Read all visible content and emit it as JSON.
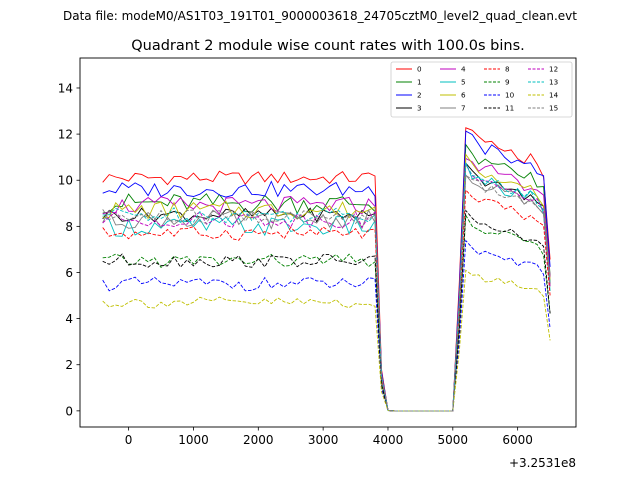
{
  "chart_data": {
    "type": "line",
    "suptitle": "Data file: modeM0/AS1T03_191T01_9000003618_24705cztM0_level2_quad_clean.evt",
    "title": "Quadrant 2 module wise count rates with 100.0s bins.",
    "xlabel": "",
    "ylabel": "",
    "x_offset_label": "+3.2531e8",
    "xlim": [
      -750,
      6900
    ],
    "ylim": [
      -0.7,
      15.3
    ],
    "xticks": [
      0,
      1000,
      2000,
      3000,
      4000,
      5000,
      6000
    ],
    "xtick_labels": [
      "0",
      "1000",
      "2000",
      "3000",
      "4000",
      "5000",
      "6000"
    ],
    "yticks": [
      0,
      2,
      4,
      6,
      8,
      10,
      12,
      14
    ],
    "ytick_labels": [
      "0",
      "2",
      "4",
      "6",
      "8",
      "10",
      "12",
      "14"
    ],
    "legend_location": "upper right",
    "grid": false,
    "x_start": -400,
    "x_step": 100,
    "bins": 70,
    "gap_bins": [
      45,
      46,
      47,
      48,
      49,
      50,
      51,
      52,
      53,
      54
    ],
    "gap_edge_values": {
      "43": 1.6,
      "44": 0.02
    },
    "series": [
      {
        "name": "0",
        "color": "#ff0000",
        "dash": "solid",
        "base": 10.1,
        "post": 12.2,
        "amp": 0.3
      },
      {
        "name": "1",
        "color": "#008000",
        "dash": "solid",
        "base": 9.0,
        "post": 11.3,
        "amp": 0.45
      },
      {
        "name": "2",
        "color": "#0000ff",
        "dash": "solid",
        "base": 9.6,
        "post": 11.9,
        "amp": 0.35
      },
      {
        "name": "3",
        "color": "#000000",
        "dash": "solid",
        "base": 8.5,
        "post": 10.4,
        "amp": 0.3
      },
      {
        "name": "4",
        "color": "#bf00bf",
        "dash": "solid",
        "base": 8.9,
        "post": 10.9,
        "amp": 0.4
      },
      {
        "name": "5",
        "color": "#00bfbf",
        "dash": "solid",
        "base": 8.0,
        "post": 10.3,
        "amp": 0.45
      },
      {
        "name": "6",
        "color": "#bfbf00",
        "dash": "solid",
        "base": 8.7,
        "post": 10.7,
        "amp": 0.4
      },
      {
        "name": "7",
        "color": "#808080",
        "dash": "solid",
        "base": 8.3,
        "post": 10.2,
        "amp": 0.4
      },
      {
        "name": "8",
        "color": "#ff0000",
        "dash": "dashed",
        "base": 7.7,
        "post": 9.5,
        "amp": 0.3
      },
      {
        "name": "9",
        "color": "#008000",
        "dash": "dashed",
        "base": 6.5,
        "post": 8.2,
        "amp": 0.3
      },
      {
        "name": "10",
        "color": "#0000ff",
        "dash": "dashed",
        "base": 5.5,
        "post": 7.1,
        "amp": 0.3
      },
      {
        "name": "11",
        "color": "#000000",
        "dash": "dashed",
        "base": 6.5,
        "post": 8.4,
        "amp": 0.3
      },
      {
        "name": "12",
        "color": "#bf00bf",
        "dash": "dashed",
        "base": 8.3,
        "post": 10.3,
        "amp": 0.35
      },
      {
        "name": "13",
        "color": "#00bfbf",
        "dash": "dashed",
        "base": 8.5,
        "post": 10.4,
        "amp": 0.35
      },
      {
        "name": "14",
        "color": "#bfbf00",
        "dash": "dashed",
        "base": 4.7,
        "post": 6.0,
        "amp": 0.25
      },
      {
        "name": "15",
        "color": "#808080",
        "dash": "dashed",
        "base": 8.4,
        "post": 10.1,
        "amp": 0.35
      }
    ]
  }
}
